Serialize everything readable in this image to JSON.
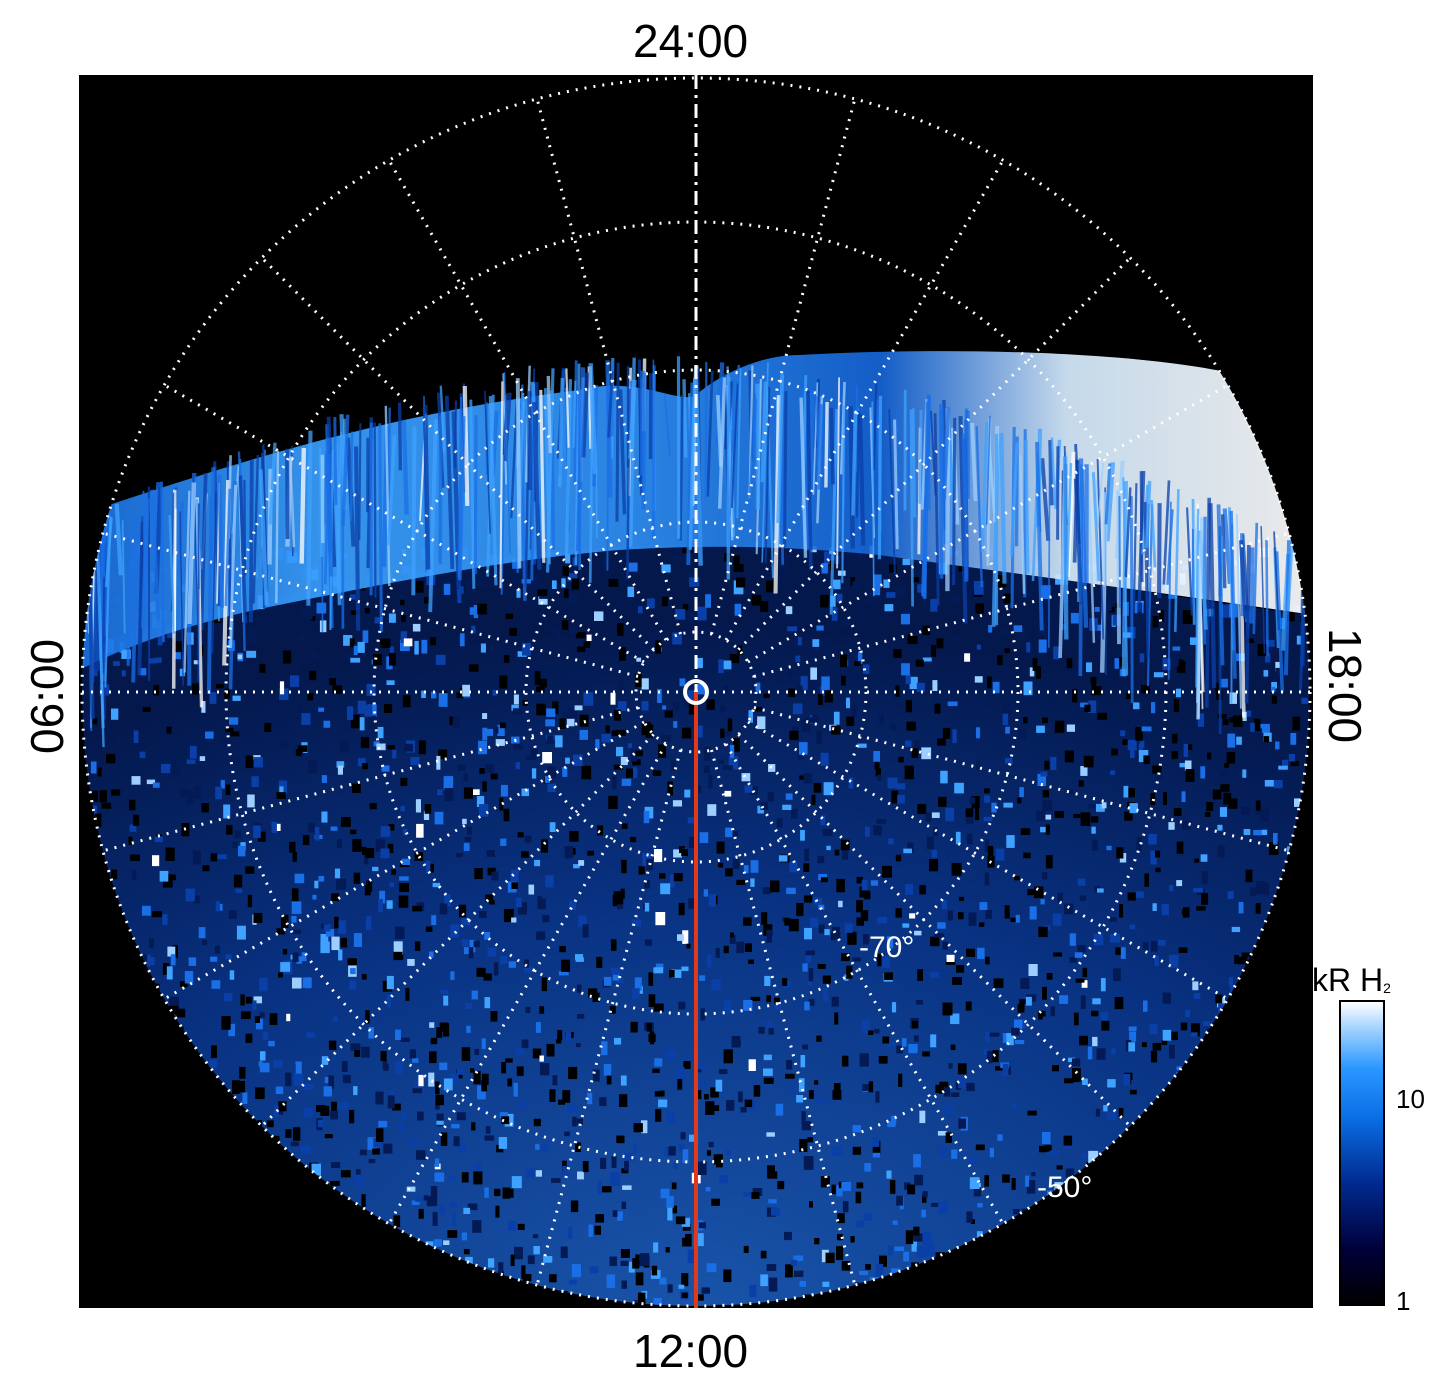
{
  "labels": {
    "top": "24:00",
    "bottom": "12:00",
    "left": "06:00",
    "right": "18:00"
  },
  "latitude_labels": [
    "-70°",
    "-50°"
  ],
  "colorbar": {
    "title": "kR H",
    "title_sub": "2",
    "ticks": [
      "10",
      "1"
    ]
  },
  "colors": {
    "background": "#000000",
    "grid": "#ffffff",
    "meridian_marker": "#e0391c"
  }
}
